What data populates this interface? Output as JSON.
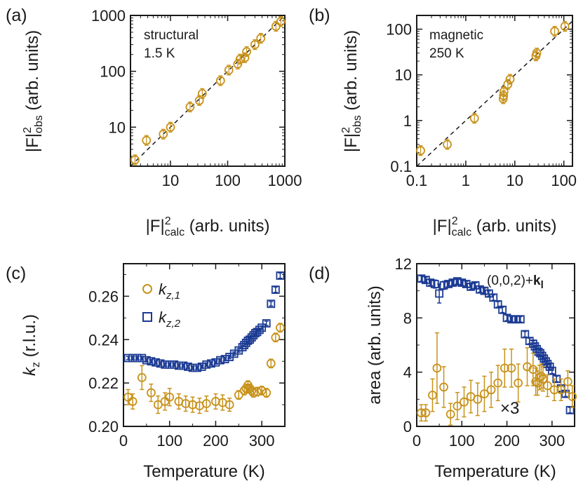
{
  "colors": {
    "gold": "#C8921A",
    "blue": "#1B3A93",
    "axis": "#1a1a1a"
  },
  "chart_data": [
    {
      "panel": "(a)",
      "type": "scatter",
      "annotation": [
        "structural",
        "1.5 K"
      ],
      "xlabel": "|F|calc2 (arb. units)",
      "ylabel": "|F|obs2 (arb. units)",
      "xscale": "log",
      "yscale": "log",
      "xlim": [
        2,
        1000
      ],
      "ylim": [
        2,
        1000
      ],
      "xticks": [
        "10",
        "100",
        "1000"
      ],
      "yticks": [
        "10",
        "100",
        "1000"
      ],
      "reference_line": "y = x (dashed)",
      "series": [
        {
          "marker": "circle",
          "color": "#C8921A",
          "x": [
            2.4,
            3.8,
            7.5,
            10,
            22,
            32,
            36,
            75,
            105,
            150,
            165,
            200,
            215,
            300,
            380,
            700,
            850
          ],
          "y": [
            2.6,
            5.8,
            7.5,
            10,
            23,
            30,
            40,
            68,
            105,
            135,
            165,
            175,
            225,
            300,
            390,
            640,
            780
          ]
        }
      ]
    },
    {
      "panel": "(b)",
      "type": "scatter",
      "annotation": [
        "magnetic",
        "250 K"
      ],
      "xlabel": "|F|calc2 (arb. units)",
      "ylabel": "|F|obs2 (arb. units)",
      "xscale": "log",
      "yscale": "log",
      "xlim": [
        0.1,
        150
      ],
      "ylim": [
        0.1,
        200
      ],
      "xticks": [
        "0.1",
        "1",
        "10",
        "100"
      ],
      "yticks": [
        "0.1",
        "1",
        "10",
        "100"
      ],
      "reference_line": "y = x (dashed)",
      "series": [
        {
          "marker": "circle",
          "color": "#C8921A",
          "x": [
            0.12,
            0.42,
            1.5,
            5.8,
            5.9,
            6.0,
            7.2,
            8.0,
            27,
            28,
            65,
            105
          ],
          "y": [
            0.22,
            0.3,
            1.12,
            3.0,
            3.5,
            4.3,
            6.2,
            8.0,
            26,
            30,
            90,
            115
          ]
        }
      ]
    },
    {
      "panel": "(c)",
      "type": "scatter",
      "xlabel": "Temperature (K)",
      "ylabel": "kz (r.l.u.)",
      "xlim": [
        0,
        350
      ],
      "ylim": [
        0.2,
        0.275
      ],
      "xticks": [
        "0",
        "100",
        "200",
        "300"
      ],
      "yticks": [
        "0.20",
        "0.22",
        "0.24",
        "0.26"
      ],
      "series": [
        {
          "name": "k",
          "subscript": "z,1",
          "marker": "circle",
          "color": "#C8921A",
          "x": [
            10,
            20,
            40,
            60,
            75,
            90,
            100,
            120,
            135,
            150,
            165,
            180,
            200,
            215,
            230,
            250,
            262,
            266,
            270,
            274,
            278,
            282,
            290,
            300,
            310,
            320,
            330,
            340
          ],
          "y": [
            0.2135,
            0.2115,
            0.2225,
            0.2155,
            0.21,
            0.2115,
            0.2135,
            0.2115,
            0.2105,
            0.21,
            0.2095,
            0.2105,
            0.2115,
            0.211,
            0.21,
            0.2145,
            0.2165,
            0.2175,
            0.219,
            0.2175,
            0.2165,
            0.2155,
            0.216,
            0.2165,
            0.2155,
            0.229,
            0.241,
            0.2455
          ],
          "yerr": [
            0.0035,
            0.0035,
            0.0055,
            0.004,
            0.004,
            0.004,
            0.004,
            0.0035,
            0.0035,
            0.0035,
            0.0035,
            0.0035,
            0.0035,
            0.0035,
            0.003,
            0.002,
            0.002,
            0.002,
            0.002,
            0.002,
            0.002,
            0.002,
            0.002,
            0.002,
            0.002,
            0.002,
            0.002,
            0.002
          ]
        },
        {
          "name": "k",
          "subscript": "z,2",
          "marker": "square",
          "color": "#1B3A93",
          "x": [
            10,
            20,
            30,
            40,
            50,
            60,
            70,
            80,
            90,
            100,
            110,
            120,
            130,
            140,
            150,
            160,
            170,
            180,
            190,
            200,
            210,
            220,
            230,
            240,
            250,
            258,
            262,
            266,
            270,
            274,
            278,
            282,
            286,
            290,
            295,
            300,
            310,
            320,
            330,
            340
          ],
          "y": [
            0.2315,
            0.2315,
            0.2315,
            0.2315,
            0.2305,
            0.23,
            0.2295,
            0.229,
            0.2285,
            0.2285,
            0.2285,
            0.228,
            0.228,
            0.2275,
            0.227,
            0.227,
            0.2275,
            0.2285,
            0.229,
            0.2295,
            0.2305,
            0.231,
            0.232,
            0.2335,
            0.235,
            0.2365,
            0.2375,
            0.2385,
            0.2395,
            0.24,
            0.241,
            0.242,
            0.243,
            0.2435,
            0.2445,
            0.2455,
            0.2475,
            0.2565,
            0.263,
            0.2695
          ],
          "yerr": [
            0.0008,
            0.0008,
            0.0008,
            0.0008,
            0.0008,
            0.0008,
            0.0008,
            0.0008,
            0.0008,
            0.0008,
            0.0008,
            0.0008,
            0.0008,
            0.0008,
            0.0008,
            0.0008,
            0.0008,
            0.0008,
            0.0008,
            0.0008,
            0.0008,
            0.0008,
            0.0008,
            0.0008,
            0.0008,
            0.0008,
            0.0008,
            0.0008,
            0.0008,
            0.0008,
            0.0008,
            0.0008,
            0.0008,
            0.0008,
            0.0008,
            0.0008,
            0.001,
            0.001,
            0.0012,
            0.0012
          ]
        }
      ]
    },
    {
      "panel": "(d)",
      "type": "scatter",
      "annotation": "(0,0,2)+kl",
      "multiplier_label": "×3",
      "xlabel": "Temperature (K)",
      "ylabel": "area (arb. units)",
      "xlim": [
        0,
        350
      ],
      "ylim": [
        0,
        12
      ],
      "xticks": [
        "0",
        "100",
        "200",
        "300"
      ],
      "yticks": [
        "0",
        "4",
        "8",
        "12"
      ],
      "series": [
        {
          "marker": "square",
          "color": "#1B3A93",
          "x": [
            10,
            20,
            30,
            40,
            50,
            60,
            70,
            80,
            90,
            100,
            110,
            120,
            130,
            140,
            150,
            160,
            170,
            180,
            190,
            200,
            210,
            220,
            230,
            240,
            250,
            258,
            262,
            266,
            270,
            274,
            278,
            282,
            286,
            290,
            295,
            300,
            310,
            320,
            330,
            340
          ],
          "y": [
            10.9,
            10.8,
            10.6,
            10.5,
            9.8,
            10.4,
            10.5,
            10.6,
            10.7,
            10.6,
            10.5,
            10.3,
            10.4,
            10.1,
            10.0,
            9.8,
            9.5,
            9.0,
            8.6,
            8.0,
            7.9,
            7.9,
            7.9,
            6.8,
            6.3,
            6.1,
            5.9,
            5.7,
            5.5,
            5.4,
            5.2,
            5.0,
            4.8,
            4.6,
            4.4,
            4.1,
            3.5,
            2.8,
            2.4,
            1.2
          ],
          "yerr": [
            0.2,
            0.2,
            0.2,
            0.3,
            0.7,
            0.3,
            0.2,
            0.2,
            0.2,
            0.2,
            0.2,
            0.2,
            0.2,
            0.2,
            0.2,
            0.2,
            0.2,
            0.2,
            0.2,
            0.2,
            0.2,
            0.2,
            0.2,
            0.2,
            0.2,
            0.2,
            0.2,
            0.2,
            0.2,
            0.2,
            0.2,
            0.2,
            0.2,
            0.2,
            0.2,
            0.2,
            0.2,
            0.2,
            0.2,
            0.2
          ]
        },
        {
          "marker": "circle",
          "color": "#C8921A",
          "x": [
            10,
            20,
            35,
            45,
            60,
            75,
            90,
            105,
            120,
            135,
            150,
            165,
            180,
            195,
            210,
            225,
            245,
            258,
            264,
            268,
            272,
            276,
            280,
            290,
            305,
            320,
            335,
            345
          ],
          "y": [
            1.0,
            1.0,
            2.3,
            4.3,
            2.9,
            0.9,
            1.5,
            1.8,
            2.2,
            2.0,
            2.4,
            2.7,
            3.2,
            4.3,
            4.3,
            3.2,
            4.4,
            4.2,
            3.3,
            3.2,
            3.6,
            3.7,
            3.5,
            3.0,
            2.7,
            2.7,
            3.3,
            2.2
          ],
          "yerr": [
            0.6,
            0.6,
            1.2,
            2.6,
            1.5,
            0.8,
            1.0,
            1.1,
            1.2,
            1.2,
            1.3,
            1.3,
            1.3,
            1.4,
            1.4,
            1.4,
            1.4,
            1.2,
            1.0,
            0.9,
            0.9,
            0.9,
            0.9,
            0.8,
            0.8,
            0.8,
            0.8,
            0.8
          ]
        }
      ]
    }
  ]
}
